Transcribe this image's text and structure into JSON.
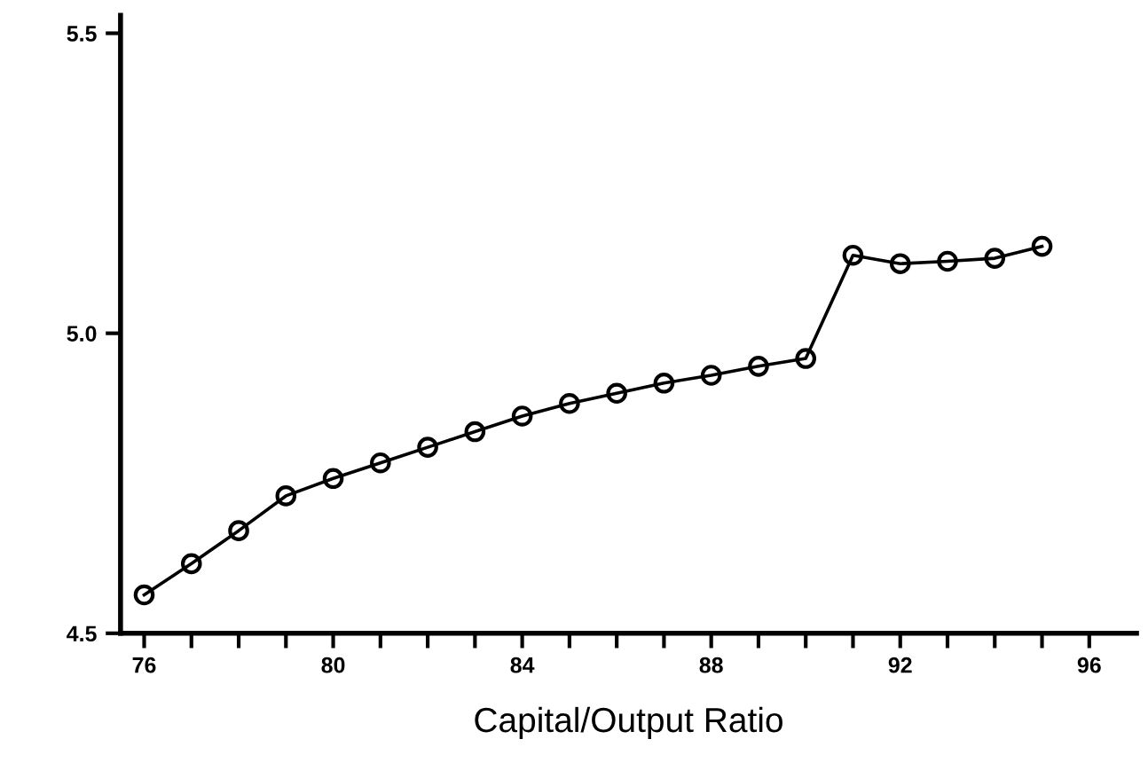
{
  "chart_data": {
    "type": "line",
    "xlabel": "Capital/Output Ratio",
    "x": [
      76,
      77,
      78,
      79,
      80,
      81,
      82,
      83,
      84,
      85,
      86,
      87,
      88,
      89,
      90,
      91,
      92,
      93,
      94,
      95
    ],
    "series": [
      {
        "color": "#000000",
        "values": [
          4.564,
          4.616,
          4.671,
          4.729,
          4.758,
          4.784,
          4.81,
          4.836,
          4.862,
          4.883,
          4.9,
          4.917,
          4.93,
          4.945,
          4.958,
          5.13,
          5.116,
          5.12,
          5.125,
          5.145
        ]
      }
    ],
    "xlim": [
      75.5,
      97
    ],
    "ylim": [
      4.5,
      5.53
    ],
    "xticks": [
      76,
      {
        "value": 77,
        "label": null
      },
      {
        "value": 78,
        "label": null
      },
      {
        "value": 79,
        "label": null
      },
      80,
      {
        "value": 81,
        "label": null
      },
      {
        "value": 82,
        "label": null
      },
      {
        "value": 83,
        "label": null
      },
      84,
      {
        "value": 85,
        "label": null
      },
      {
        "value": 86,
        "label": null
      },
      {
        "value": 87,
        "label": null
      },
      88,
      {
        "value": 89,
        "label": null
      },
      {
        "value": 90,
        "label": null
      },
      {
        "value": 91,
        "label": null
      },
      92,
      {
        "value": 93,
        "label": null
      },
      {
        "value": 94,
        "label": null
      },
      {
        "value": 95,
        "label": null
      },
      96
    ],
    "yticks": [
      {
        "value": 4.5,
        "label": "4.5"
      },
      {
        "value": 5.0,
        "label": "5.0"
      },
      {
        "value": 5.5,
        "label": "5.5"
      }
    ],
    "marker": "circle",
    "line_style": "solid",
    "grid": false,
    "legend": false
  }
}
